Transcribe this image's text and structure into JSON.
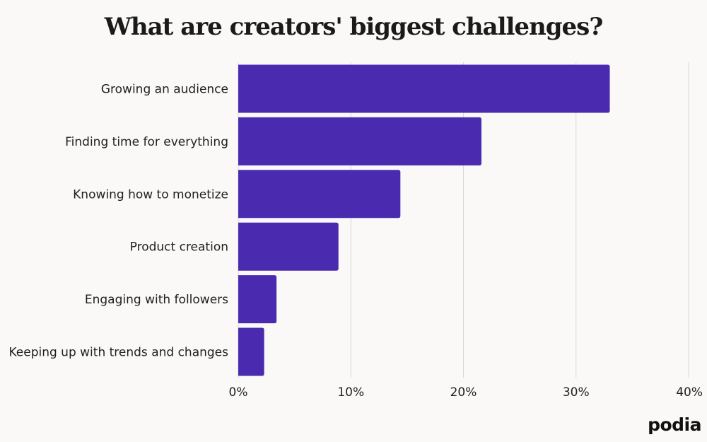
{
  "title": "What are creators' biggest challenges?",
  "brand": "podia",
  "colors": {
    "bar": "#4a2bb0",
    "grid": "#d9d9d9",
    "background": "#faf9f7"
  },
  "chart_data": {
    "type": "bar",
    "orientation": "horizontal",
    "title": "What are creators' biggest challenges?",
    "categories": [
      "Growing an audience",
      "Finding time for everything",
      "Knowing how to monetize",
      "Product creation",
      "Engaging with followers",
      "Keeping up with trends and changes"
    ],
    "values": [
      33,
      21.6,
      14.4,
      8.9,
      3.4,
      2.3
    ],
    "xlim": [
      0,
      40
    ],
    "ticks": [
      0,
      10,
      20,
      30,
      40
    ],
    "tick_labels": [
      "0%",
      "10%",
      "20%",
      "30%",
      "40%"
    ],
    "grid": true
  }
}
